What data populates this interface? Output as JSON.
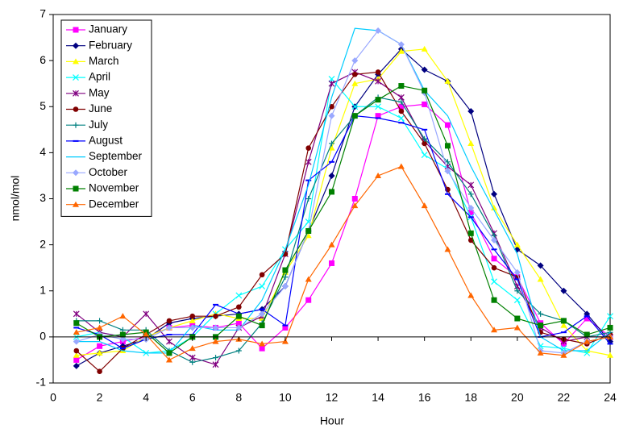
{
  "chart_data": {
    "type": "line",
    "x_label": "Hour",
    "y_label": "nmol/mol",
    "xlim": [
      0,
      24
    ],
    "xticks": [
      0,
      2,
      4,
      6,
      8,
      10,
      12,
      14,
      16,
      18,
      20,
      22,
      24
    ],
    "ylim": [
      -1,
      7
    ],
    "yticks": [
      -1,
      0,
      1,
      2,
      3,
      4,
      5,
      6,
      7
    ],
    "legend": "upper-left",
    "x": [
      1,
      2,
      3,
      4,
      5,
      6,
      7,
      8,
      9,
      10,
      11,
      12,
      13,
      14,
      15,
      16,
      17,
      18,
      19,
      20,
      21,
      22,
      23,
      24
    ],
    "series": [
      {
        "name": "January",
        "color": "#ff00ff",
        "marker": "square",
        "values": [
          -0.5,
          -0.2,
          -0.1,
          0.0,
          0.2,
          0.25,
          0.2,
          0.3,
          -0.25,
          0.2,
          0.8,
          1.6,
          3.0,
          4.8,
          5.0,
          5.05,
          4.6,
          2.7,
          1.7,
          1.3,
          0.3,
          -0.15,
          0.4,
          0.0
        ]
      },
      {
        "name": "February",
        "color": "#000080",
        "marker": "diamond",
        "values": [
          -0.63,
          -0.35,
          -0.2,
          -0.05,
          0.3,
          0.4,
          0.45,
          0.5,
          0.6,
          1.1,
          2.3,
          3.5,
          5.0,
          5.7,
          6.25,
          5.8,
          5.55,
          4.9,
          3.1,
          1.9,
          1.55,
          1.0,
          0.5,
          -0.1
        ]
      },
      {
        "name": "March",
        "color": "#ffff00",
        "marker": "triangle",
        "values": [
          -0.4,
          -0.35,
          -0.3,
          0.0,
          0.2,
          0.35,
          0.5,
          0.4,
          0.4,
          1.4,
          2.2,
          4.1,
          5.5,
          5.6,
          6.2,
          6.25,
          5.55,
          4.2,
          2.8,
          2.0,
          1.25,
          0.25,
          -0.3,
          -0.4
        ]
      },
      {
        "name": "April",
        "color": "#00ffff",
        "marker": "x",
        "values": [
          0.0,
          0.1,
          0.0,
          -0.35,
          -0.3,
          0.0,
          0.5,
          0.9,
          1.1,
          1.9,
          2.5,
          5.6,
          5.0,
          5.0,
          4.75,
          3.95,
          3.65,
          2.6,
          1.2,
          0.8,
          -0.2,
          -0.25,
          -0.35,
          0.45
        ]
      },
      {
        "name": "May",
        "color": "#800080",
        "marker": "star",
        "values": [
          0.5,
          0.1,
          0.0,
          0.5,
          -0.1,
          -0.45,
          -0.6,
          0.2,
          0.45,
          1.8,
          3.8,
          5.5,
          5.75,
          5.55,
          5.2,
          4.25,
          3.7,
          3.3,
          2.25,
          1.1,
          0.2,
          -0.1,
          0.0,
          0.0
        ]
      },
      {
        "name": "June",
        "color": "#800000",
        "marker": "circle",
        "values": [
          -0.3,
          -0.75,
          -0.25,
          0.05,
          0.35,
          0.45,
          0.45,
          0.65,
          1.35,
          1.8,
          4.1,
          5.0,
          5.7,
          5.75,
          4.9,
          4.2,
          3.2,
          2.1,
          1.5,
          1.3,
          0.1,
          -0.05,
          -0.15,
          0.05
        ]
      },
      {
        "name": "July",
        "color": "#008080",
        "marker": "plus",
        "values": [
          0.35,
          0.35,
          0.15,
          0.15,
          -0.3,
          -0.55,
          -0.45,
          -0.3,
          0.3,
          1.3,
          3.0,
          4.2,
          4.8,
          5.2,
          5.1,
          4.3,
          3.8,
          3.1,
          2.2,
          1.0,
          0.5,
          0.35,
          0.0,
          0.1
        ]
      },
      {
        "name": "August",
        "color": "#0000ff",
        "marker": "dash",
        "values": [
          0.2,
          0.05,
          -0.25,
          -0.05,
          0.05,
          0.05,
          0.7,
          0.5,
          0.6,
          0.25,
          3.4,
          3.8,
          4.8,
          4.75,
          4.65,
          4.5,
          3.1,
          2.6,
          1.9,
          1.25,
          0.0,
          0.1,
          0.45,
          -0.15
        ]
      },
      {
        "name": "September",
        "color": "#00ccff",
        "marker": "none",
        "values": [
          -0.1,
          -0.1,
          -0.3,
          -0.35,
          -0.35,
          0.25,
          0.15,
          0.15,
          0.8,
          1.9,
          3.3,
          5.2,
          6.7,
          6.65,
          6.35,
          5.35,
          4.8,
          3.7,
          2.75,
          1.8,
          0.0,
          -0.3,
          -0.3,
          0.1
        ]
      },
      {
        "name": "October",
        "color": "#99a8ff",
        "marker": "diamond",
        "values": [
          -0.1,
          0.05,
          -0.05,
          -0.05,
          0.2,
          0.2,
          0.2,
          0.2,
          0.5,
          1.1,
          2.3,
          4.8,
          6.0,
          6.65,
          6.35,
          5.3,
          3.6,
          2.8,
          2.1,
          1.4,
          -0.3,
          -0.35,
          -0.1,
          0.0
        ]
      },
      {
        "name": "November",
        "color": "#008000",
        "marker": "square",
        "values": [
          0.3,
          0.0,
          0.05,
          0.1,
          -0.35,
          0.0,
          0.0,
          0.45,
          0.25,
          1.45,
          2.3,
          3.15,
          4.8,
          5.15,
          5.45,
          5.35,
          4.15,
          2.25,
          0.8,
          0.4,
          0.25,
          0.35,
          0.05,
          0.2
        ]
      },
      {
        "name": "December",
        "color": "#ff6600",
        "marker": "triangle",
        "values": [
          0.1,
          0.2,
          0.45,
          0.05,
          -0.5,
          -0.25,
          -0.1,
          -0.05,
          -0.15,
          -0.1,
          1.25,
          2.0,
          2.85,
          3.5,
          3.7,
          2.85,
          1.9,
          0.9,
          0.15,
          0.2,
          -0.35,
          -0.4,
          -0.1,
          0.0
        ]
      }
    ]
  }
}
